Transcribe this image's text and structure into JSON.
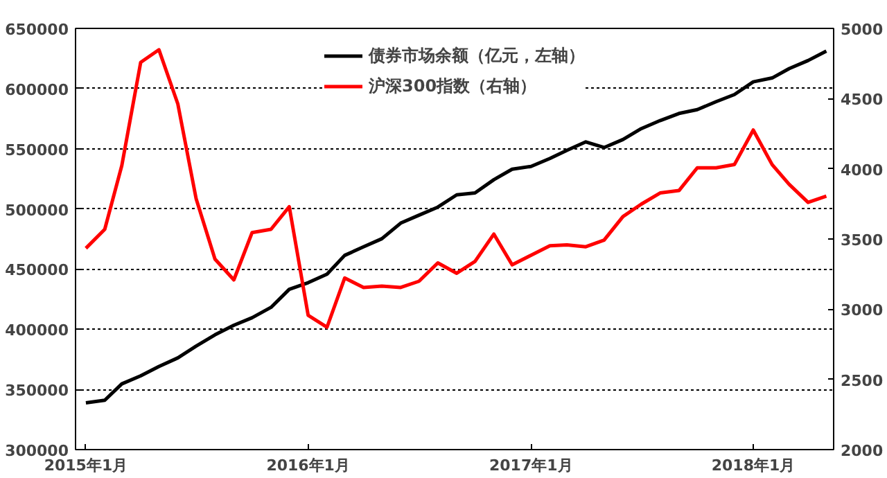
{
  "chart_data": {
    "type": "line",
    "x": [
      "2015-01",
      "2015-02",
      "2015-03",
      "2015-04",
      "2015-05",
      "2015-06",
      "2015-07",
      "2015-08",
      "2015-09",
      "2015-10",
      "2015-11",
      "2015-12",
      "2016-01",
      "2016-02",
      "2016-03",
      "2016-04",
      "2016-05",
      "2016-06",
      "2016-07",
      "2016-08",
      "2016-09",
      "2016-10",
      "2016-11",
      "2016-12",
      "2017-01",
      "2017-02",
      "2017-03",
      "2017-04",
      "2017-05",
      "2017-06",
      "2017-07",
      "2017-08",
      "2017-09",
      "2017-10",
      "2017-11",
      "2017-12",
      "2018-01",
      "2018-02",
      "2018-03",
      "2018-04",
      "2018-05"
    ],
    "series": [
      {
        "name": "债券市场余额（亿元，左轴）",
        "color": "#000000",
        "values": [
          338900,
          341000,
          354600,
          361300,
          369100,
          376200,
          386000,
          395400,
          403300,
          409600,
          418200,
          433200,
          438700,
          445800,
          461400,
          468500,
          475200,
          488200,
          494800,
          501500,
          511700,
          513300,
          524300,
          533000,
          535300,
          541900,
          548700,
          555700,
          551000,
          557700,
          566700,
          573400,
          579300,
          582500,
          589100,
          595000,
          605600,
          608800,
          616600,
          623300,
          631100
        ]
      },
      {
        "name": "沪深300指数（右轴）",
        "color": "#ff0000",
        "axis": "y2",
        "values": [
          3434,
          3569,
          4023,
          4758,
          4848,
          4462,
          3788,
          3357,
          3209,
          3546,
          3569,
          3730,
          2957,
          2872,
          3222,
          3155,
          3165,
          3155,
          3199,
          3330,
          3256,
          3340,
          3535,
          3316,
          3384,
          3452,
          3458,
          3445,
          3492,
          3660,
          3748,
          3828,
          3845,
          4007,
          4007,
          4030,
          4276,
          4030,
          3889,
          3761,
          3805
        ]
      }
    ],
    "xlim": [
      "2014-12-15",
      "2018-05-13"
    ],
    "xticks": [
      {
        "value": "2015-01",
        "label": "2015年1月"
      },
      {
        "value": "2016-01",
        "label": "2016年1月"
      },
      {
        "value": "2017-01",
        "label": "2017年1月"
      },
      {
        "value": "2018-01",
        "label": "2018年1月"
      }
    ],
    "ylim": [
      300000,
      650000
    ],
    "yticks": [
      300000,
      350000,
      400000,
      450000,
      500000,
      550000,
      600000,
      650000
    ],
    "y2lim": [
      2000,
      5000
    ],
    "y2ticks": [
      2000,
      2500,
      3000,
      3500,
      4000,
      4500,
      5000
    ],
    "grid": "y",
    "legend": "top",
    "line_style": "solid",
    "marker": "none"
  }
}
